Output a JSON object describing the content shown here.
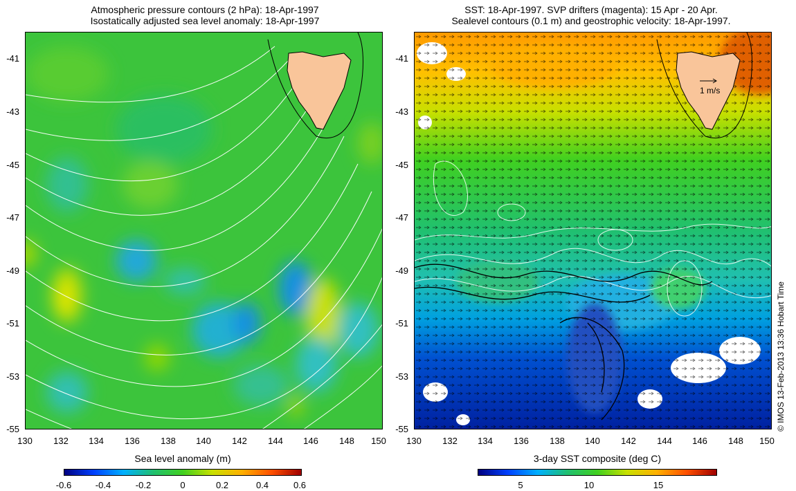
{
  "left_panel": {
    "title_line1": "Atmospheric pressure contours (2 hPa): 18-Apr-1997",
    "title_line2": "Isostatically adjusted sea level anomaly: 18-Apr-1997",
    "colorbar_label": "Sea level anomaly (m)",
    "colorbar_ticks": [
      "-0.6",
      "-0.4",
      "-0.2",
      "0",
      "0.2",
      "0.4",
      "0.6"
    ]
  },
  "right_panel": {
    "title_line1": "SST: 18-Apr-1997. SVP drifters (magenta): 15 Apr - 20 Apr.",
    "title_line2": "Sealevel contours (0.1 m) and geostrophic velocity: 18-Apr-1997.",
    "scale_arrow_label": "1 m/s",
    "colorbar_label": "3-day SST composite (deg C)",
    "colorbar_ticks": [
      "5",
      "10",
      "15"
    ]
  },
  "axes": {
    "lat_ticks": [
      "-41",
      "-43",
      "-45",
      "-47",
      "-49",
      "-51",
      "-53",
      "-55"
    ],
    "lon_ticks": [
      "130",
      "132",
      "134",
      "136",
      "138",
      "140",
      "142",
      "144",
      "146",
      "148",
      "150"
    ]
  },
  "credit": "© IMOS 13-Feb-2013 13:36 Hobart Time",
  "colors": {
    "land": "#f9c59a",
    "left_base": "#3cc43c",
    "colormap": [
      "#000080",
      "#0040ff",
      "#00b0ff",
      "#20c070",
      "#40d020",
      "#c8e000",
      "#ffb000",
      "#ff5000",
      "#a00000"
    ]
  }
}
